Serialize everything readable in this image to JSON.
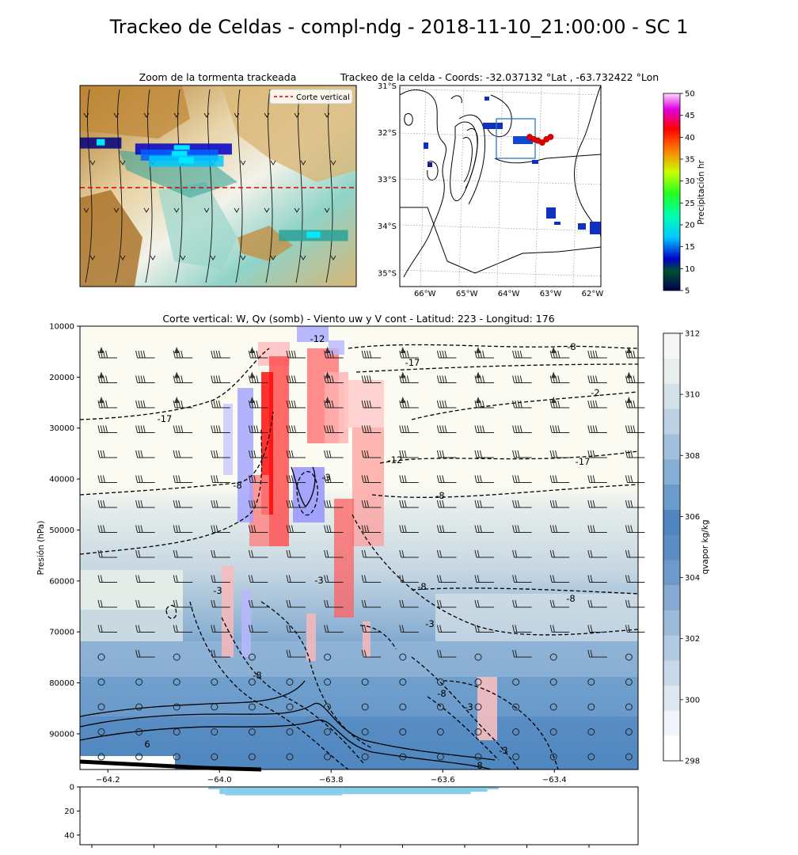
{
  "figure": {
    "suptitle": "Trackeo de Celdas - compl-ndg - 2018-11-10_21:00:00 - SC 1"
  },
  "chart_data": [
    {
      "id": "zoom",
      "type": "heatmap",
      "title": "Zoom de la tormenta trackeada",
      "legend": {
        "entries": [
          "Corte vertical"
        ],
        "placement": "top-right"
      },
      "annotations": [
        "terrain shading brown-to-white",
        "wind streamlines",
        "precipitation pixels",
        "red dashed horizontal section line"
      ],
      "precip_cells": [
        {
          "row": 0.29,
          "col_start": 0.0,
          "col_end": 0.15,
          "level": 8
        },
        {
          "row": 0.32,
          "col_start": 0.2,
          "col_end": 0.55,
          "level": 10
        },
        {
          "row": 0.35,
          "col_start": 0.22,
          "col_end": 0.5,
          "level": 15
        },
        {
          "row": 0.38,
          "col_start": 0.25,
          "col_end": 0.52,
          "level": 12
        },
        {
          "row": 0.75,
          "col_start": 0.72,
          "col_end": 0.97,
          "level": 14
        }
      ]
    },
    {
      "id": "track",
      "type": "scatter",
      "title": "Trackeo de la celda - Coords: -32.037132 °Lat , -63.732422 °Lon",
      "x_ticks": [
        "66°W",
        "65°W",
        "64°W",
        "63°W",
        "62°W"
      ],
      "y_ticks": [
        "31°S",
        "32°S",
        "33°S",
        "34°S",
        "35°S"
      ],
      "xlim": [
        -66.6,
        -61.8
      ],
      "ylim": [
        -35.3,
        -31.0
      ],
      "track_points": [
        {
          "lon": -63.5,
          "lat": -32.1
        },
        {
          "lon": -63.4,
          "lat": -32.15
        },
        {
          "lon": -63.3,
          "lat": -32.18
        },
        {
          "lon": -63.2,
          "lat": -32.22
        },
        {
          "lon": -63.1,
          "lat": -32.15
        },
        {
          "lon": -63.0,
          "lat": -32.1
        }
      ],
      "colorbar": {
        "label": "Precipitación hr",
        "ticks": [
          "5",
          "10",
          "15",
          "20",
          "25",
          "30",
          "35",
          "40",
          "45",
          "50"
        ],
        "range": [
          5,
          50
        ]
      }
    },
    {
      "id": "section",
      "type": "heatmap",
      "title": "Corte vertical: W, Qv (somb) - Viento uw y V cont - Latitud: 223 - Longitud: 176",
      "ylabel": "Presión (hPa)",
      "xlabel": "",
      "x_ticks": [
        "−64.2",
        "−64.0",
        "−63.8",
        "−63.6",
        "−63.4"
      ],
      "y_ticks": [
        "10000",
        "20000",
        "30000",
        "40000",
        "50000",
        "60000",
        "70000",
        "80000",
        "90000"
      ],
      "xlim": [
        -64.25,
        -63.25
      ],
      "ylim": [
        97000,
        10000
      ],
      "contour_labels": [
        "-12",
        "-17",
        "-8",
        "-2",
        "-17",
        "-12",
        "-17",
        "-8",
        "-3",
        "-8",
        "-8",
        "-3",
        "-8",
        "-3",
        "-8",
        "-3",
        "-8",
        "6",
        "-3",
        "-8",
        "-3"
      ],
      "colorbar": {
        "label": "qvapor kg/kg",
        "ticks": [
          "298",
          "300",
          "302",
          "304",
          "306",
          "308",
          "310",
          "312"
        ],
        "range": [
          298,
          312
        ]
      }
    },
    {
      "id": "terrain",
      "type": "bar",
      "y_ticks": [
        "0",
        "20",
        "40"
      ],
      "ylim": [
        48,
        0
      ],
      "xlim": [
        -64.25,
        -63.25
      ],
      "segments": [
        {
          "x0": -64.02,
          "x1": -64.0,
          "value": 2
        },
        {
          "x0": -64.0,
          "x1": -63.99,
          "value": 6
        },
        {
          "x0": -63.99,
          "x1": -63.78,
          "value": 7
        },
        {
          "x0": -63.78,
          "x1": -63.55,
          "value": 6
        },
        {
          "x0": -63.55,
          "x1": -63.52,
          "value": 4
        },
        {
          "x0": -63.52,
          "x1": -63.5,
          "value": 2
        }
      ]
    }
  ]
}
